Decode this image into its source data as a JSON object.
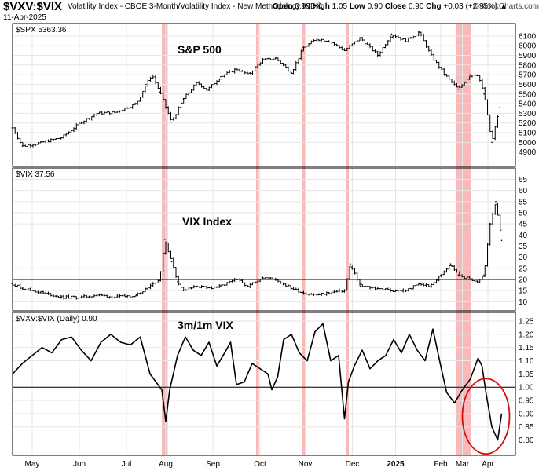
{
  "header": {
    "symbol": "$VXV:$VIX",
    "description": "Volatility Index - CBOE 3-Month/Volatility Index - New Methodology  INDX",
    "date": "11-Apr-2025",
    "open_label": "Open",
    "open": "0.99",
    "high_label": "High",
    "high": "1.05",
    "low_label": "Low",
    "low": "0.90",
    "close_label": "Close",
    "close": "0.90",
    "chg_label": "Chg",
    "chg": "+0.03 (+2.95%)",
    "brand": "StockCharts.com",
    "brand_prefix": "©"
  },
  "colors": {
    "price": "#000000",
    "highlight": "#f08080",
    "ellipse": "#d01010",
    "grid": "#e6e6e6",
    "reference": "#000000"
  },
  "chart_data": [
    {
      "type": "ohlc",
      "panel_label": "$SPX 5363.36",
      "annotation": "S&P 500",
      "ylim": [
        4800,
        6180
      ],
      "yticks": [
        4900,
        5000,
        5100,
        5200,
        5300,
        5400,
        5500,
        5600,
        5700,
        5800,
        5900,
        6000,
        6100
      ],
      "x": [
        0,
        0.5,
        1.5,
        2.5,
        3.5,
        4.3,
        5.2,
        6.3,
        6.8,
        7.1,
        7.5,
        8.1,
        8.7,
        9.4,
        9.9,
        10.6,
        11.4,
        12.0,
        12.7,
        13.4,
        14.2,
        14.8,
        15.5,
        16.1,
        16.9,
        17.7,
        18.6,
        19.3,
        20.0,
        20.7,
        21.3,
        22.0,
        22.7,
        23.3,
        23.7,
        24.0,
        24.4,
        24.8
      ],
      "values": [
        5150,
        4960,
        5000,
        5050,
        5210,
        5300,
        5310,
        5400,
        5600,
        5700,
        5520,
        5210,
        5450,
        5620,
        5540,
        5680,
        5760,
        5700,
        5850,
        5870,
        5720,
        5980,
        6070,
        6050,
        5950,
        6080,
        5900,
        6120,
        6050,
        6140,
        5900,
        5700,
        5550,
        5700,
        5700,
        5500,
        5000,
        5360
      ]
    },
    {
      "type": "ohlc",
      "panel_label": "$VIX 37.56",
      "annotation": "VIX Index",
      "ylim": [
        8,
        68
      ],
      "yticks": [
        10,
        15,
        20,
        25,
        30,
        35,
        40,
        45,
        50,
        55,
        60,
        65
      ],
      "reference_line": 20,
      "x": [
        0,
        0.5,
        1.5,
        2.5,
        3.5,
        4.3,
        5.2,
        6.3,
        6.8,
        7.1,
        7.5,
        7.75,
        8.1,
        8.4,
        8.7,
        9.4,
        9.9,
        10.6,
        11.4,
        12.0,
        12.7,
        13.4,
        14.2,
        14.8,
        15.5,
        16.1,
        16.9,
        17.2,
        17.7,
        18.6,
        19.3,
        20.0,
        20.7,
        21.3,
        21.8,
        22.3,
        22.7,
        23.3,
        23.7,
        24.0,
        24.3,
        24.6,
        24.9
      ],
      "values": [
        18,
        16,
        14,
        12,
        12,
        13,
        12,
        13,
        16,
        18,
        20,
        38,
        28,
        19,
        15,
        17,
        16,
        17,
        20,
        17,
        21,
        20,
        16,
        14,
        13,
        14,
        15,
        27,
        17,
        16,
        15,
        15,
        18,
        17,
        22,
        27,
        22,
        20,
        19,
        22,
        45,
        55,
        37.56
      ]
    },
    {
      "type": "line",
      "panel_label": "$VXV:$VIX (Daily) 0.90",
      "annotation": "3m/1m VIX",
      "ylim": [
        0.76,
        1.265
      ],
      "yticks": [
        0.8,
        0.85,
        0.9,
        0.95,
        1.0,
        1.05,
        1.1,
        1.15,
        1.2,
        1.25
      ],
      "reference_line": 1.0,
      "x": [
        0,
        0.5,
        1.0,
        1.5,
        2.0,
        2.5,
        3.0,
        3.5,
        4.0,
        4.5,
        5.0,
        5.5,
        6.0,
        6.5,
        7.0,
        7.3,
        7.6,
        7.8,
        8.0,
        8.4,
        8.8,
        9.2,
        9.6,
        10.0,
        10.4,
        10.8,
        11.1,
        11.4,
        11.8,
        12.2,
        12.6,
        13.0,
        13.2,
        13.5,
        13.8,
        14.2,
        14.6,
        15.0,
        15.4,
        15.8,
        16.2,
        16.6,
        16.9,
        17.1,
        17.4,
        17.8,
        18.2,
        18.6,
        19.0,
        19.4,
        19.8,
        20.2,
        20.6,
        21.0,
        21.4,
        21.8,
        22.1,
        22.5,
        22.9,
        23.3,
        23.5,
        23.7,
        23.9,
        24.1,
        24.4,
        24.7,
        24.9
      ],
      "values": [
        1.05,
        1.09,
        1.12,
        1.15,
        1.13,
        1.18,
        1.19,
        1.14,
        1.1,
        1.17,
        1.2,
        1.17,
        1.16,
        1.19,
        1.05,
        1.02,
        0.99,
        0.87,
        0.99,
        1.12,
        1.19,
        1.14,
        1.12,
        1.17,
        1.08,
        1.13,
        1.17,
        1.01,
        1.02,
        1.09,
        1.07,
        1.05,
        0.99,
        1.04,
        1.18,
        1.2,
        1.13,
        1.1,
        1.21,
        1.24,
        1.1,
        1.12,
        0.88,
        1.02,
        1.08,
        1.14,
        1.07,
        1.1,
        1.12,
        1.18,
        1.13,
        1.2,
        1.14,
        1.1,
        1.22,
        1.08,
        0.98,
        0.94,
        0.99,
        1.03,
        1.07,
        1.11,
        1.08,
        0.98,
        0.85,
        0.8,
        0.9
      ]
    }
  ],
  "x_axis": {
    "labels": [
      "May",
      "Jun",
      "Jul",
      "Aug",
      "Sep",
      "Oct",
      "Nov",
      "Dec",
      "2025",
      "Feb",
      "Mar",
      "Apr"
    ],
    "positions": [
      1.0,
      3.4,
      5.8,
      7.8,
      10.2,
      12.6,
      14.9,
      17.3,
      19.5,
      21.8,
      22.9,
      24.2
    ],
    "bold": [
      "2025"
    ],
    "xlim": [
      0,
      25.6
    ]
  },
  "highlights": [
    {
      "x0": 7.6,
      "x1": 7.9
    },
    {
      "x0": 12.4,
      "x1": 12.55
    },
    {
      "x0": 14.75,
      "x1": 14.9
    },
    {
      "x0": 17.0,
      "x1": 17.12
    },
    {
      "x0": 22.6,
      "x1": 23.35
    }
  ]
}
